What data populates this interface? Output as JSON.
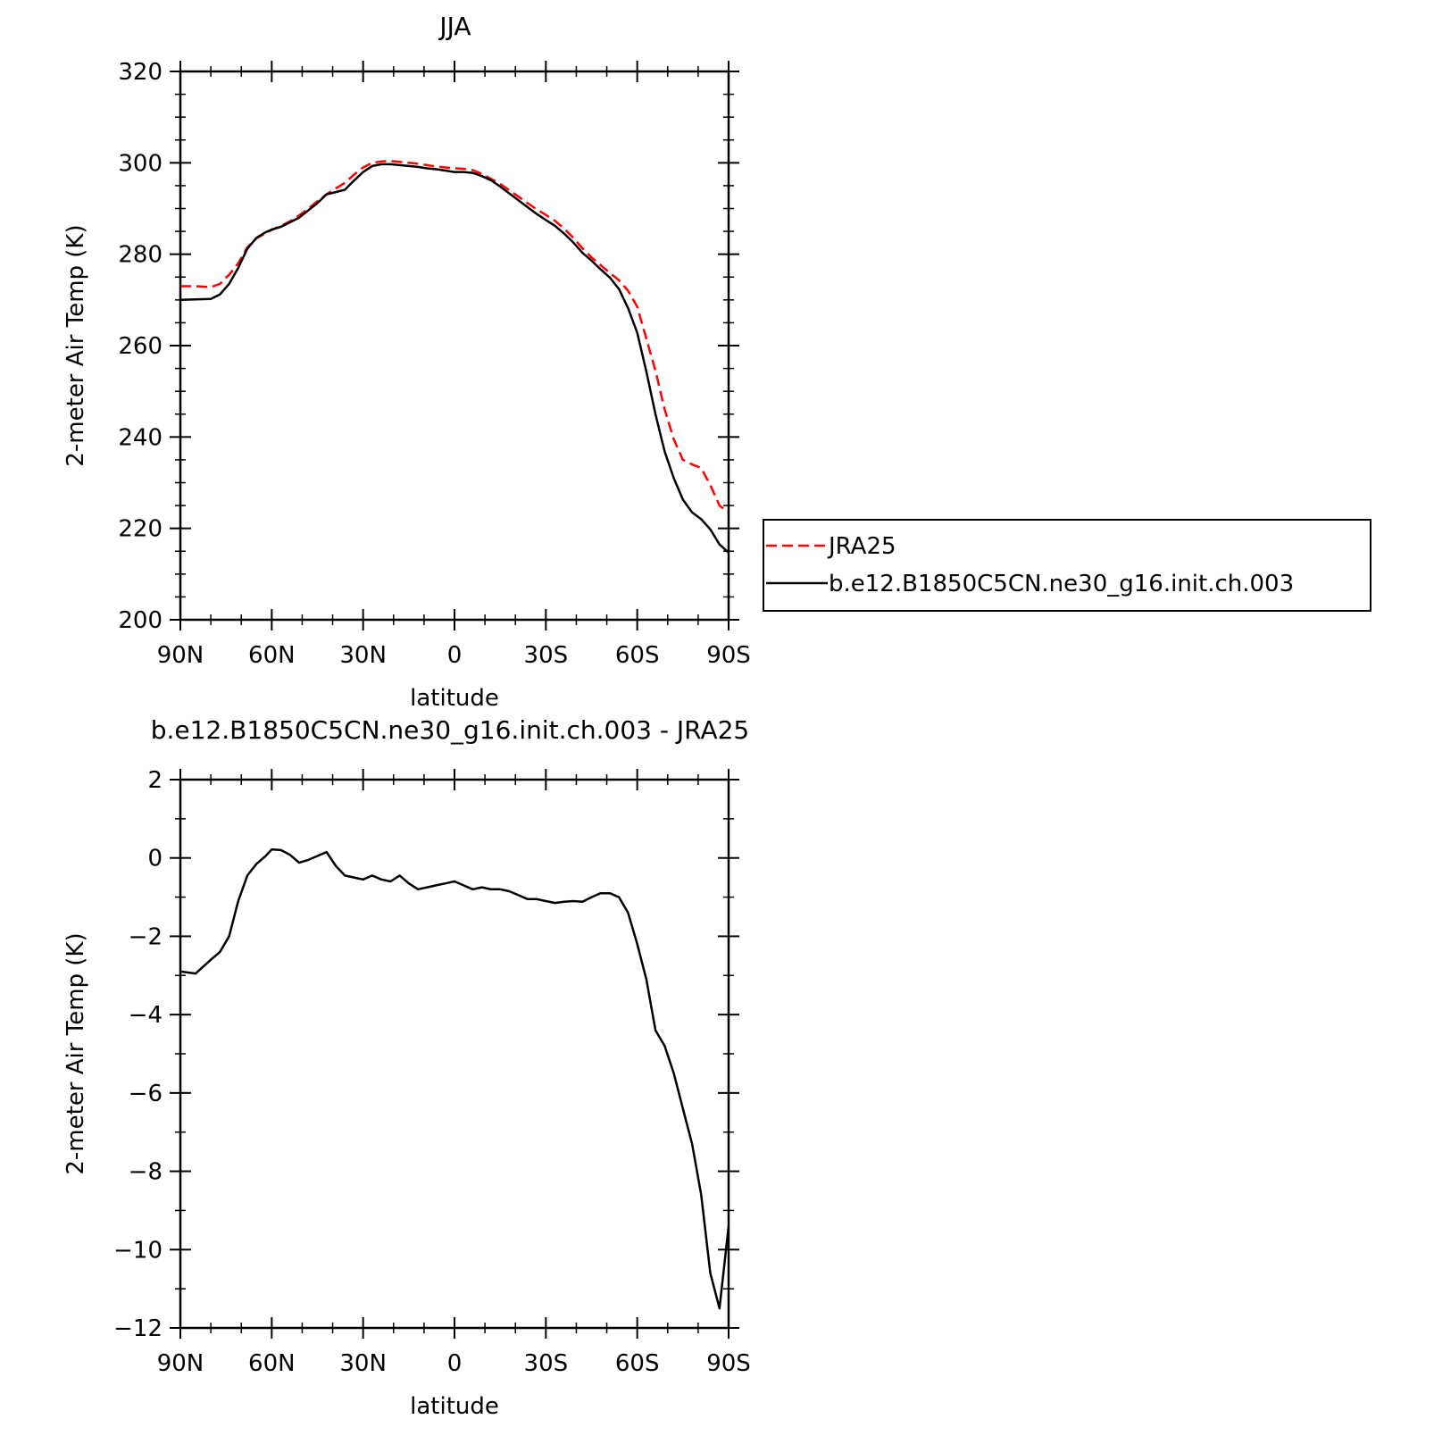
{
  "chart_data": [
    {
      "type": "line",
      "title": "JJA",
      "xlabel": "latitude",
      "ylabel": "2-meter Air Temp (K)",
      "xlim": [
        90,
        -90
      ],
      "ylim": [
        200,
        320
      ],
      "xticks": [
        90,
        60,
        30,
        0,
        -30,
        -60,
        -90
      ],
      "xtick_labels": [
        "90N",
        "60N",
        "30N",
        "0",
        "30S",
        "60S",
        "90S"
      ],
      "yticks": [
        200,
        220,
        240,
        260,
        280,
        300,
        320
      ],
      "ytick_labels": [
        "200",
        "220",
        "240",
        "260",
        "280",
        "300",
        "320"
      ],
      "grid": false,
      "legend_position": "right",
      "series": [
        {
          "name": "JRA25",
          "color": "#ff0000",
          "dash": "dashed",
          "x": [
            90,
            85,
            80,
            77,
            74,
            71,
            68,
            65,
            62,
            60,
            57,
            54,
            51,
            48,
            45,
            42,
            39,
            36,
            33,
            30,
            27,
            24,
            21,
            18,
            15,
            12,
            9,
            6,
            3,
            0,
            -3,
            -6,
            -9,
            -12,
            -15,
            -18,
            -21,
            -24,
            -27,
            -30,
            -33,
            -36,
            -39,
            -42,
            -45,
            -48,
            -51,
            -54,
            -57,
            -60,
            -63,
            -66,
            -69,
            -72,
            -75,
            -78,
            -81,
            -84,
            -87,
            -90
          ],
          "y": [
            273,
            273,
            272.8,
            273.5,
            275.5,
            278,
            281.5,
            283.5,
            284.6,
            285.3,
            286.2,
            287.2,
            288.5,
            290,
            291.6,
            293.1,
            294.4,
            295.6,
            297.4,
            299,
            300,
            300.3,
            300.4,
            300.2,
            300,
            299.8,
            299.5,
            299.2,
            299,
            298.8,
            298.7,
            298.4,
            297.6,
            296.5,
            295.4,
            294,
            292.6,
            291.2,
            289.8,
            288.6,
            287.3,
            285.6,
            283.6,
            281.3,
            279.3,
            277.6,
            275.9,
            274.3,
            272,
            268.5,
            261.5,
            254.5,
            246,
            239.5,
            235,
            234,
            233.2,
            229.5,
            225,
            223.5
          ]
        },
        {
          "name": "b.e12.B1850C5CN.ne30_g16.init.ch.003",
          "color": "#000000",
          "dash": "solid",
          "x": [
            90,
            85,
            80,
            77,
            74,
            71,
            68,
            65,
            62,
            60,
            57,
            54,
            51,
            48,
            45,
            42,
            39,
            36,
            33,
            30,
            27,
            24,
            21,
            18,
            15,
            12,
            9,
            6,
            3,
            0,
            -3,
            -6,
            -9,
            -12,
            -15,
            -18,
            -21,
            -24,
            -27,
            -30,
            -33,
            -36,
            -39,
            -42,
            -45,
            -48,
            -51,
            -54,
            -57,
            -60,
            -63,
            -66,
            -69,
            -72,
            -75,
            -78,
            -81,
            -84,
            -87,
            -90
          ],
          "y": [
            270,
            270.1,
            270.2,
            271.2,
            273.5,
            277,
            281.2,
            283.6,
            284.8,
            285.4,
            286,
            287,
            288,
            289.6,
            291.2,
            293.1,
            293.6,
            294.1,
            296.1,
            298,
            299.3,
            299.7,
            299.7,
            299.5,
            299.3,
            299.1,
            298.8,
            298.6,
            298.3,
            298,
            298,
            297.8,
            297.1,
            296.2,
            294.8,
            293.3,
            291.8,
            290.3,
            288.8,
            287.5,
            286.2,
            284.5,
            282.6,
            280.3,
            278.6,
            276.7,
            274.9,
            272.4,
            268.2,
            262.8,
            254.3,
            245,
            236.8,
            231,
            226.3,
            223.5,
            222,
            219.8,
            216.5,
            214.7
          ]
        }
      ]
    },
    {
      "type": "line",
      "title": "b.e12.B1850C5CN.ne30_g16.init.ch.003 - JRA25",
      "xlabel": "latitude",
      "ylabel": "2-meter Air Temp (K)",
      "xlim": [
        90,
        -90
      ],
      "ylim": [
        -12,
        2
      ],
      "xticks": [
        90,
        60,
        30,
        0,
        -30,
        -60,
        -90
      ],
      "xtick_labels": [
        "90N",
        "60N",
        "30N",
        "0",
        "30S",
        "60S",
        "90S"
      ],
      "yticks": [
        -12,
        -10,
        -8,
        -6,
        -4,
        -2,
        0,
        2
      ],
      "ytick_labels": [
        "−12",
        "−10",
        "−8",
        "−6",
        "−4",
        "−2",
        "0",
        "2"
      ],
      "grid": false,
      "series": [
        {
          "color": "#000000",
          "dash": "solid",
          "x": [
            90,
            85,
            80,
            77,
            74,
            71,
            68,
            65,
            62,
            60,
            57,
            54,
            51,
            48,
            45,
            42,
            39,
            36,
            33,
            30,
            27,
            24,
            21,
            18,
            15,
            12,
            9,
            6,
            3,
            0,
            -3,
            -6,
            -9,
            -12,
            -15,
            -18,
            -21,
            -24,
            -27,
            -30,
            -33,
            -36,
            -39,
            -42,
            -45,
            -48,
            -51,
            -54,
            -57,
            -60,
            -63,
            -66,
            -69,
            -72,
            -75,
            -78,
            -81,
            -84,
            -87,
            -90
          ],
          "y": [
            -2.9,
            -2.95,
            -2.6,
            -2.4,
            -2.0,
            -1.1,
            -0.45,
            -0.15,
            0.05,
            0.22,
            0.2,
            0.08,
            -0.12,
            -0.05,
            0.05,
            0.15,
            -0.2,
            -0.45,
            -0.5,
            -0.55,
            -0.45,
            -0.55,
            -0.6,
            -0.45,
            -0.65,
            -0.8,
            -0.75,
            -0.7,
            -0.65,
            -0.6,
            -0.7,
            -0.8,
            -0.75,
            -0.8,
            -0.8,
            -0.85,
            -0.95,
            -1.05,
            -1.05,
            -1.1,
            -1.15,
            -1.12,
            -1.1,
            -1.12,
            -1.0,
            -0.9,
            -0.9,
            -1.0,
            -1.4,
            -2.2,
            -3.1,
            -4.4,
            -4.8,
            -5.5,
            -6.4,
            -7.3,
            -8.6,
            -10.6,
            -11.5,
            -9.4
          ]
        }
      ]
    }
  ]
}
